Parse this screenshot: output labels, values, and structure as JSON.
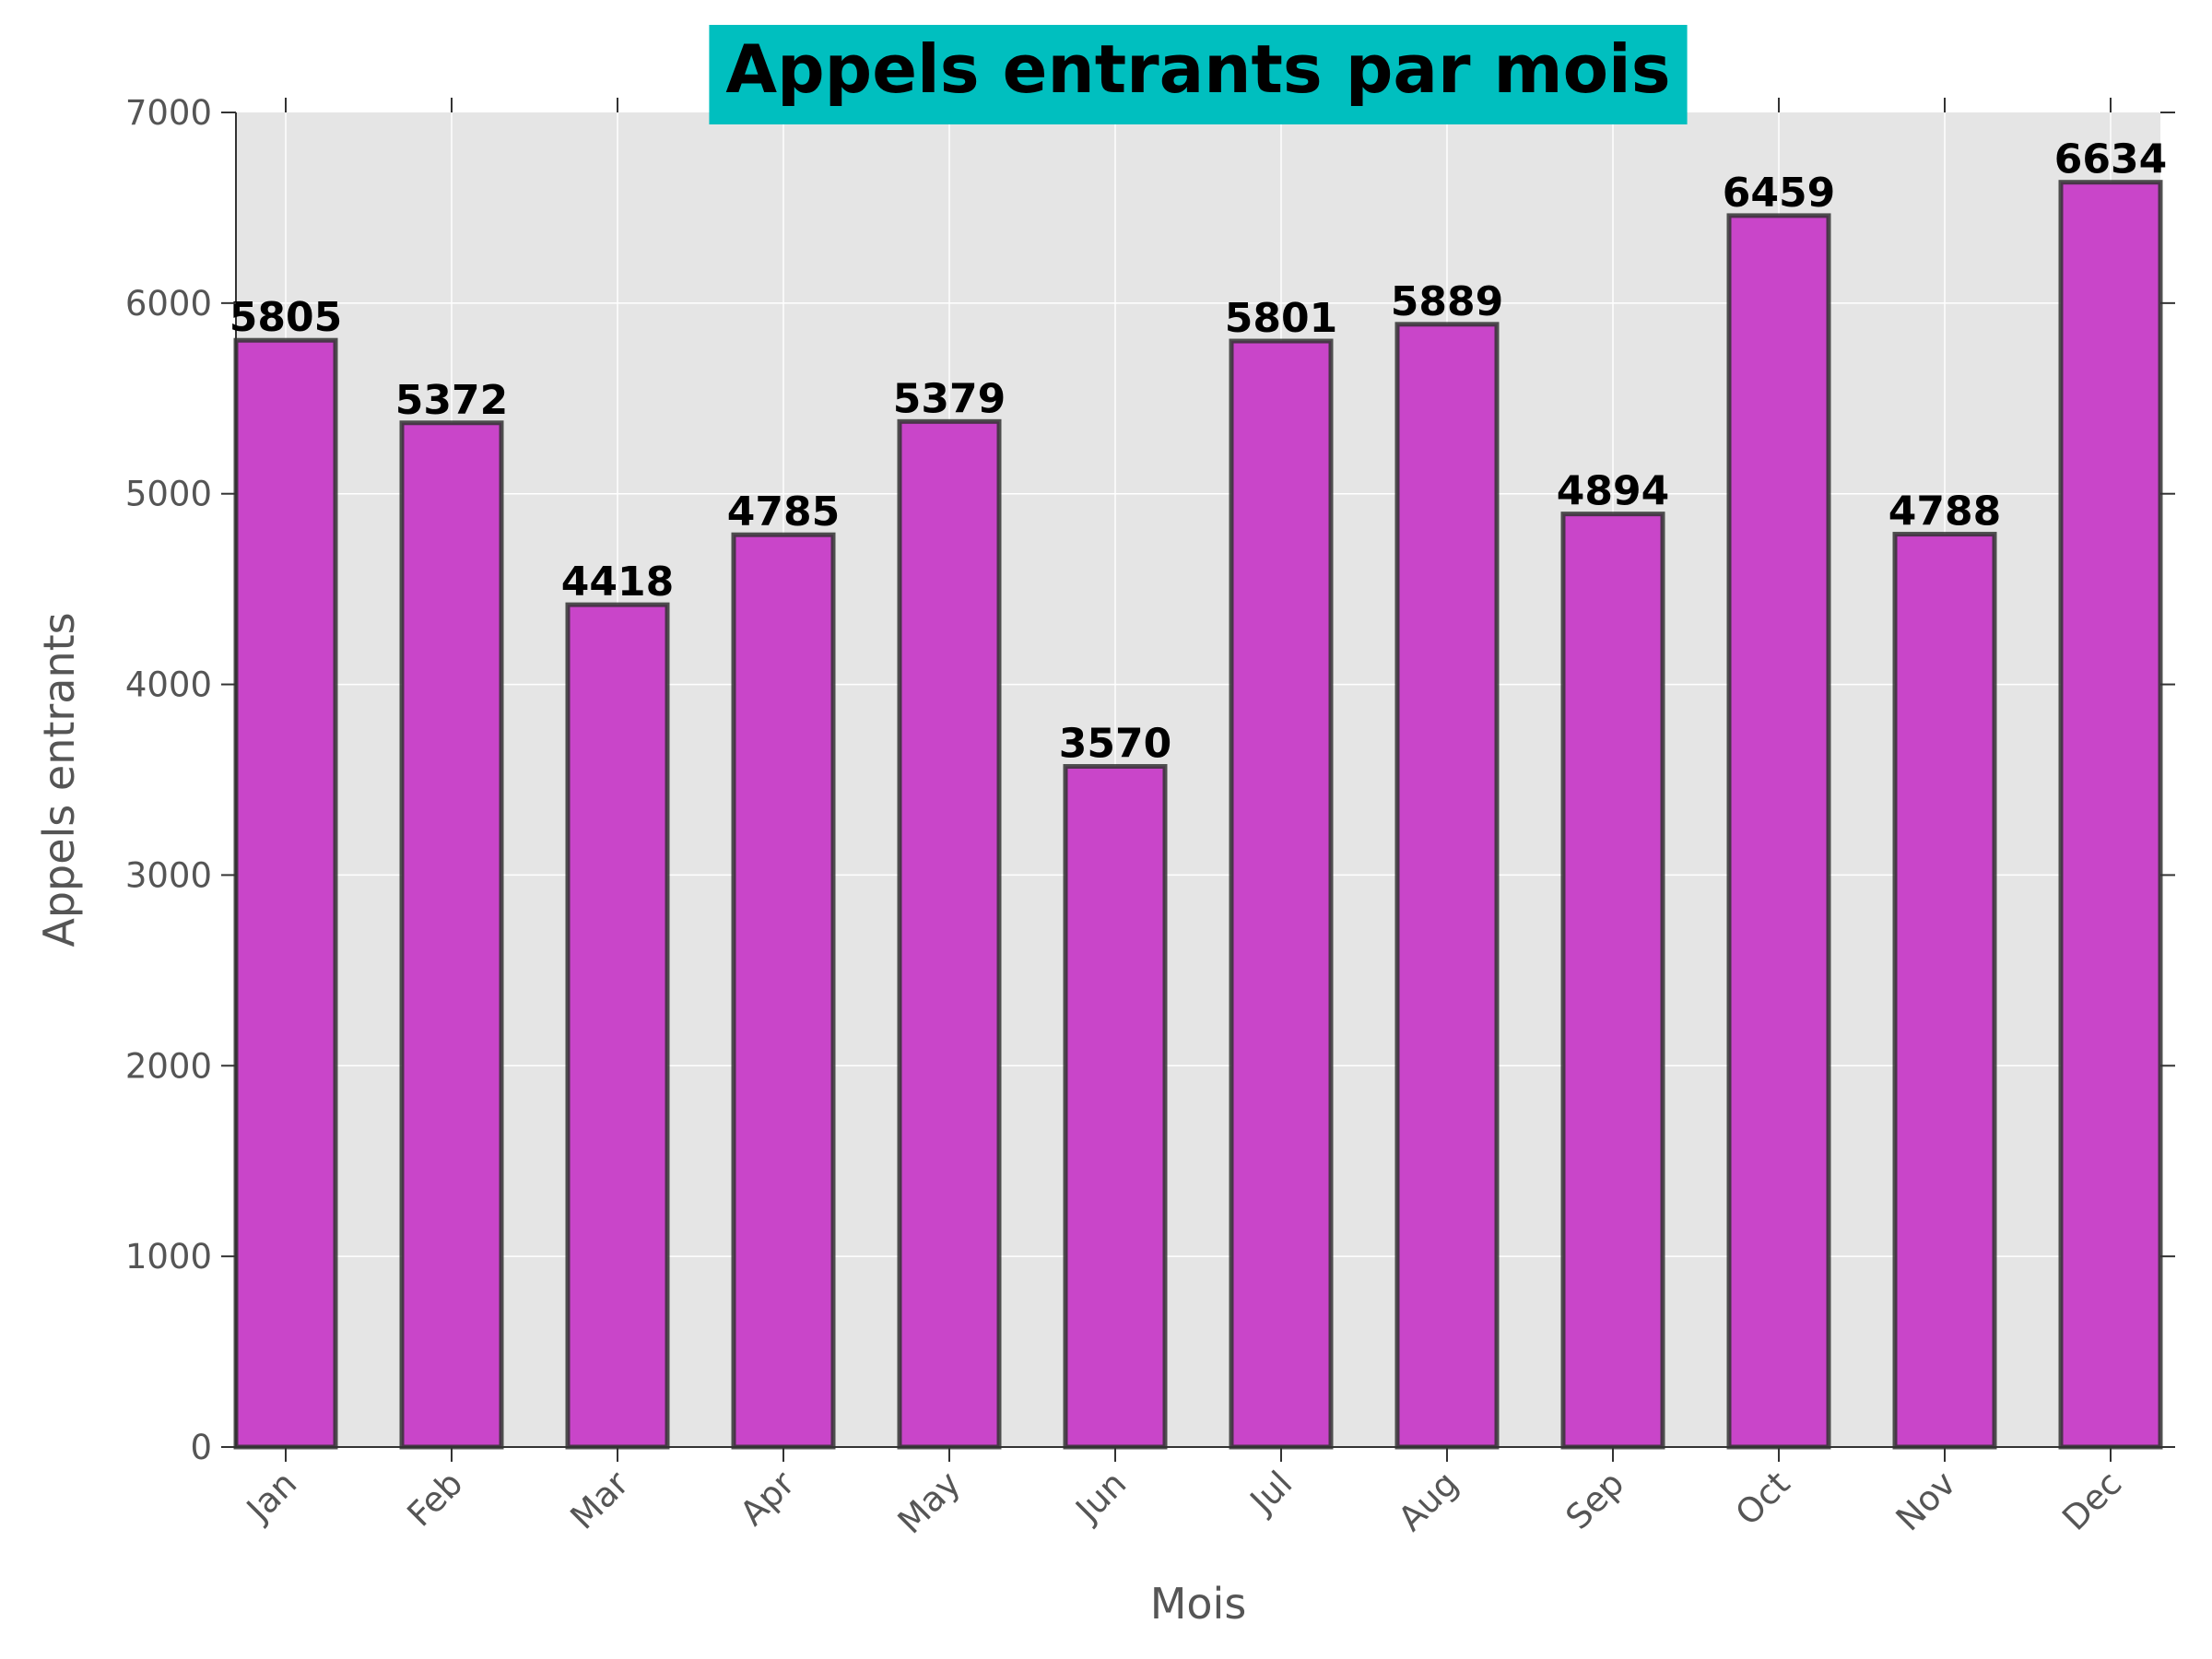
{
  "chart_data": {
    "type": "bar",
    "title": "Appels entrants par mois",
    "xlabel": "Mois",
    "ylabel": "Appels entrants",
    "categories": [
      "Jan",
      "Feb",
      "Mar",
      "Apr",
      "May",
      "Jun",
      "Jul",
      "Aug",
      "Sep",
      "Oct",
      "Nov",
      "Dec"
    ],
    "values": [
      5805,
      5372,
      4418,
      4785,
      5379,
      3570,
      5801,
      5889,
      4894,
      6459,
      4788,
      6634
    ],
    "data_labels": [
      "5805",
      "5372",
      "4418",
      "4785",
      "5379",
      "3570",
      "5801",
      "5889",
      "4894",
      "6459",
      "4788",
      "6634"
    ],
    "ylim": [
      0,
      7000
    ],
    "yticks": [
      "0",
      "1000",
      "2000",
      "3000",
      "4000",
      "5000",
      "6000",
      "7000"
    ],
    "ytick_values": [
      0,
      1000,
      2000,
      3000,
      4000,
      5000,
      6000,
      7000
    ],
    "grid": true,
    "colors": {
      "bar_fill": "#c841c8",
      "bar_edge": "#333333",
      "plot_background": "#e5e5e5",
      "grid": "#ffffff",
      "title_background": "#00bfbf"
    }
  }
}
